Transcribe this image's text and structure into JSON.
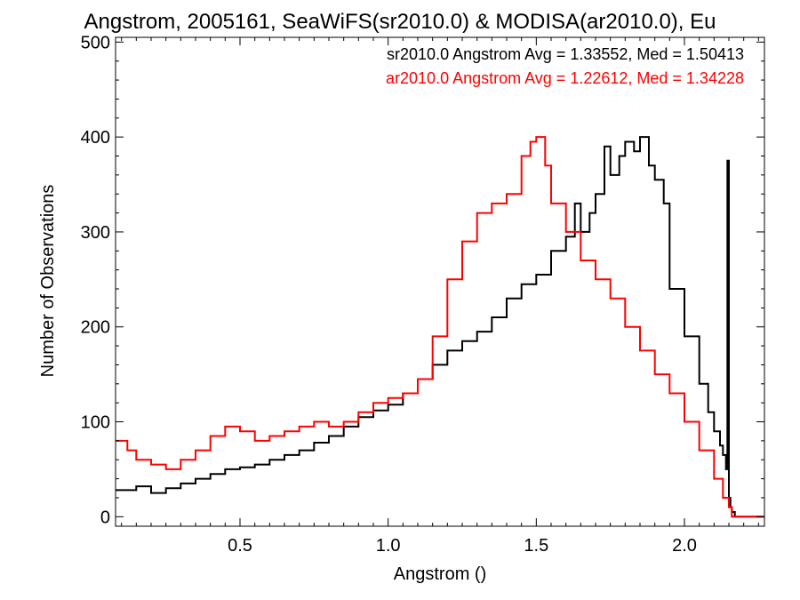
{
  "chart_data": {
    "type": "line",
    "title": "Angstrom, 2005161, SeaWiFS(sr2010.0) & MODISA(ar2010.0), Eu",
    "xlabel": "Angstrom ()",
    "ylabel": "Number of Observations",
    "xlim": [
      0.08,
      2.27
    ],
    "ylim": [
      -10,
      505
    ],
    "x_ticks": [
      0.5,
      1.0,
      1.5,
      2.0
    ],
    "x_tick_labels": [
      "0.5",
      "1.0",
      "1.5",
      "2.0"
    ],
    "y_ticks": [
      0,
      100,
      200,
      300,
      400,
      500
    ],
    "y_tick_labels": [
      "0",
      "100",
      "200",
      "300",
      "400",
      "500"
    ],
    "grid": false,
    "legend_position": "top-right",
    "annotations": [
      {
        "text": "sr2010.0 Angstrom Avg = 1.33552, Med = 1.50413",
        "color": "#000000"
      },
      {
        "text": "ar2010.0 Angstrom Avg = 1.22612, Med = 1.34228",
        "color": "#ff0000"
      }
    ],
    "series": [
      {
        "color": "#000000",
        "style": "step",
        "x": [
          0.08,
          0.15,
          0.2,
          0.25,
          0.3,
          0.35,
          0.4,
          0.45,
          0.5,
          0.55,
          0.6,
          0.65,
          0.7,
          0.75,
          0.8,
          0.85,
          0.9,
          0.95,
          1.0,
          1.05,
          1.1,
          1.15,
          1.2,
          1.25,
          1.3,
          1.35,
          1.4,
          1.45,
          1.5,
          1.55,
          1.6,
          1.63,
          1.65,
          1.68,
          1.7,
          1.73,
          1.75,
          1.78,
          1.8,
          1.83,
          1.85,
          1.88,
          1.9,
          1.93,
          1.95,
          2.0,
          2.05,
          2.08,
          2.1,
          2.12,
          2.13,
          2.14,
          2.145,
          2.15,
          2.155,
          2.16,
          2.17,
          2.2,
          2.27
        ],
        "y": [
          28,
          32,
          25,
          30,
          35,
          40,
          45,
          50,
          52,
          55,
          60,
          65,
          70,
          78,
          85,
          95,
          105,
          112,
          118,
          130,
          145,
          160,
          175,
          185,
          195,
          210,
          230,
          245,
          255,
          280,
          295,
          330,
          300,
          320,
          340,
          390,
          360,
          380,
          395,
          385,
          400,
          370,
          355,
          330,
          240,
          190,
          140,
          110,
          90,
          75,
          65,
          50,
          375,
          20,
          10,
          5,
          0,
          0,
          0
        ]
      },
      {
        "color": "#ff0000",
        "style": "step",
        "x": [
          0.08,
          0.12,
          0.15,
          0.2,
          0.25,
          0.3,
          0.35,
          0.4,
          0.45,
          0.5,
          0.55,
          0.6,
          0.65,
          0.7,
          0.75,
          0.8,
          0.85,
          0.9,
          0.95,
          1.0,
          1.05,
          1.1,
          1.15,
          1.2,
          1.25,
          1.3,
          1.35,
          1.4,
          1.45,
          1.48,
          1.5,
          1.53,
          1.55,
          1.6,
          1.65,
          1.7,
          1.75,
          1.8,
          1.85,
          1.9,
          1.95,
          2.0,
          2.05,
          2.1,
          2.13,
          2.15,
          2.16,
          2.2,
          2.27
        ],
        "y": [
          80,
          70,
          60,
          55,
          50,
          60,
          70,
          85,
          95,
          90,
          80,
          85,
          90,
          95,
          100,
          95,
          100,
          110,
          120,
          125,
          130,
          145,
          190,
          250,
          290,
          320,
          330,
          340,
          380,
          395,
          400,
          370,
          330,
          300,
          270,
          250,
          230,
          200,
          175,
          150,
          130,
          100,
          70,
          40,
          20,
          10,
          0,
          0,
          0
        ]
      }
    ]
  }
}
